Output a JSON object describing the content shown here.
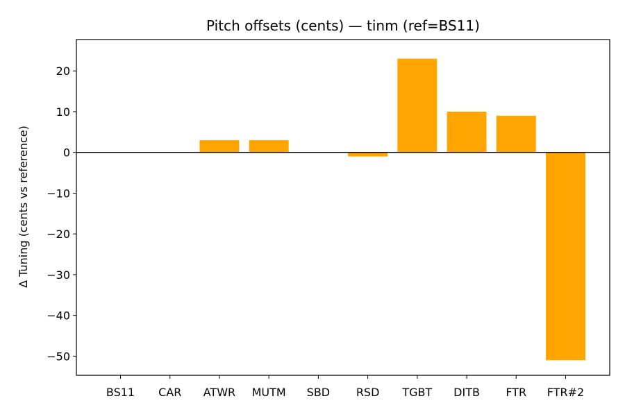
{
  "chart_data": {
    "type": "bar",
    "title": "Pitch offsets (cents) — tinm (ref=BS11)",
    "xlabel": "",
    "ylabel": "Δ Tuning (cents vs reference)",
    "categories": [
      "BS11",
      "CAR",
      "ATWR",
      "MUTM",
      "SBD",
      "RSD",
      "TGBT",
      "DITB",
      "FTR",
      "FTR#2"
    ],
    "values": [
      0,
      0,
      3,
      3,
      0,
      -1,
      23,
      10,
      9,
      -51
    ],
    "ylim": [
      -54.7,
      27.7
    ],
    "yticks": [
      20,
      10,
      0,
      -10,
      -20,
      -30,
      -40,
      -50
    ],
    "ytick_labels": [
      "20",
      "10",
      "0",
      "−10",
      "−20",
      "−30",
      "−40",
      "−50"
    ],
    "bar_color": "#ffa500",
    "zero_line": true,
    "grid": false,
    "legend": "none"
  }
}
